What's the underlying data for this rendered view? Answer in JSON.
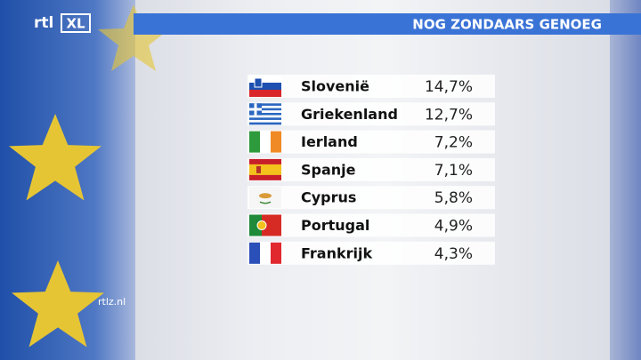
{
  "brand": "rtl",
  "brand_suffix": "XL",
  "title": "NOG ZONDAARS GENOEG",
  "watermark": "rtlz.nl",
  "table": {
    "rows": [
      [
        "Slovenië",
        "14,7%"
      ],
      [
        "Griekenland",
        "12,7%"
      ],
      [
        "Ierland",
        "7,2%"
      ],
      [
        "Spanje",
        "7,1%"
      ],
      [
        "Cyprus",
        "5,8%"
      ],
      [
        "Portugal",
        "4,9%"
      ],
      [
        "Frankrijk",
        "4,3%"
      ]
    ]
  }
}
